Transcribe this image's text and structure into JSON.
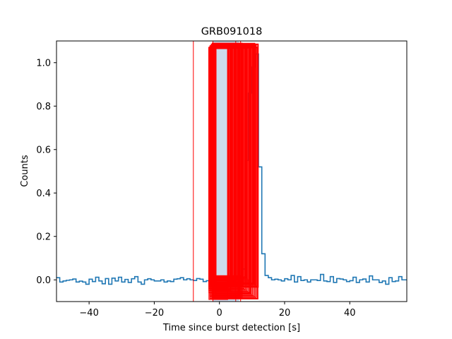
{
  "chart_data": {
    "type": "line",
    "title": "GRB091018",
    "xlabel": "Time since burst detection [s]",
    "ylabel": "Counts",
    "xlim": [
      -50,
      57.5
    ],
    "ylim": [
      -0.1,
      1.1
    ],
    "x_ticks": [
      -40,
      -20,
      0,
      20,
      40
    ],
    "y_ticks": [
      0.0,
      0.2,
      0.4,
      0.6,
      0.8,
      1.0
    ],
    "x_tick_labels": [
      "−40",
      "−20",
      "0",
      "20",
      "40"
    ],
    "y_tick_labels": [
      "0.0",
      "0.2",
      "0.4",
      "0.6",
      "0.8",
      "1.0"
    ],
    "grid": false,
    "colors": {
      "line": "#1f77b4",
      "fill": "#c6d7ea",
      "boxes": "#ff0000"
    },
    "series": [
      {
        "bin_width": 1,
        "x_start": -50,
        "values": [
          0.01,
          -0.01,
          -0.005,
          -0.002,
          0.0,
          0.004,
          -0.01,
          -0.006,
          -0.01,
          -0.02,
          0.003,
          -0.008,
          0.012,
          -0.005,
          -0.018,
          0.006,
          -0.02,
          0.008,
          -0.005,
          0.012,
          -0.01,
          0.002,
          -0.012,
          0.005,
          0.015,
          -0.01,
          -0.02,
          0.0,
          0.005,
          0.0,
          -0.005,
          -0.005,
          0.0,
          -0.01,
          -0.005,
          -0.008,
          0.003,
          0.005,
          0.01,
          0.0,
          0.005,
          0.0,
          -0.003,
          0.006,
          0.003,
          -0.008,
          -0.004,
          0.0,
          0.0,
          0.0,
          0.0,
          0.003,
          -0.005,
          0.0,
          -0.01,
          0.012,
          -0.02,
          0.05,
          0.55,
          0.86,
          0.98,
          1.04,
          0.52,
          0.12,
          0.02,
          0.01,
          0.0,
          0.003,
          0.0,
          -0.005,
          0.005,
          0.0,
          0.02,
          -0.01,
          0.015,
          -0.003,
          0.0,
          -0.01,
          0.0,
          0.0,
          -0.003,
          0.025,
          -0.005,
          -0.008,
          0.015,
          -0.012,
          0.006,
          0.004,
          0.0,
          -0.008,
          -0.004,
          0.012,
          -0.012,
          0.0,
          0.004,
          -0.01,
          0.018,
          0.0,
          0.0,
          -0.012,
          -0.005,
          -0.02,
          0.01,
          -0.008,
          -0.005,
          0.015,
          0.0,
          0.0
        ]
      }
    ],
    "shaded_region": {
      "x": [
        -2,
        6
      ]
    },
    "overlay_boxes_count": 60
  }
}
